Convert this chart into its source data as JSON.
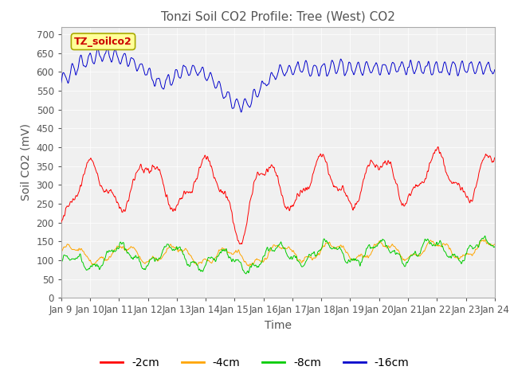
{
  "title": "Tonzi Soil CO2 Profile: Tree (West) CO2",
  "ylabel": "Soil CO2 (mV)",
  "xlabel": "Time",
  "xlim": [
    0,
    15
  ],
  "ylim": [
    0,
    720
  ],
  "yticks": [
    0,
    50,
    100,
    150,
    200,
    250,
    300,
    350,
    400,
    450,
    500,
    550,
    600,
    650,
    700
  ],
  "xtick_labels": [
    "Jan 9",
    "Jan 10",
    "Jan 11",
    "Jan 12",
    "Jan 13",
    "Jan 14",
    "Jan 15",
    "Jan 16",
    "Jan 17",
    "Jan 18",
    "Jan 19",
    "Jan 20",
    "Jan 21",
    "Jan 22",
    "Jan 23",
    "Jan 24"
  ],
  "legend_labels": [
    "-2cm",
    "-4cm",
    "-8cm",
    "-16cm"
  ],
  "legend_colors": [
    "#ff0000",
    "#ffa500",
    "#00cc00",
    "#0000cc"
  ],
  "inset_label": "TZ_soilco2",
  "inset_label_color": "#cc0000",
  "inset_bg_color": "#ffff99",
  "title_fontsize": 11,
  "axis_label_fontsize": 10,
  "tick_fontsize": 8.5,
  "legend_fontsize": 10
}
